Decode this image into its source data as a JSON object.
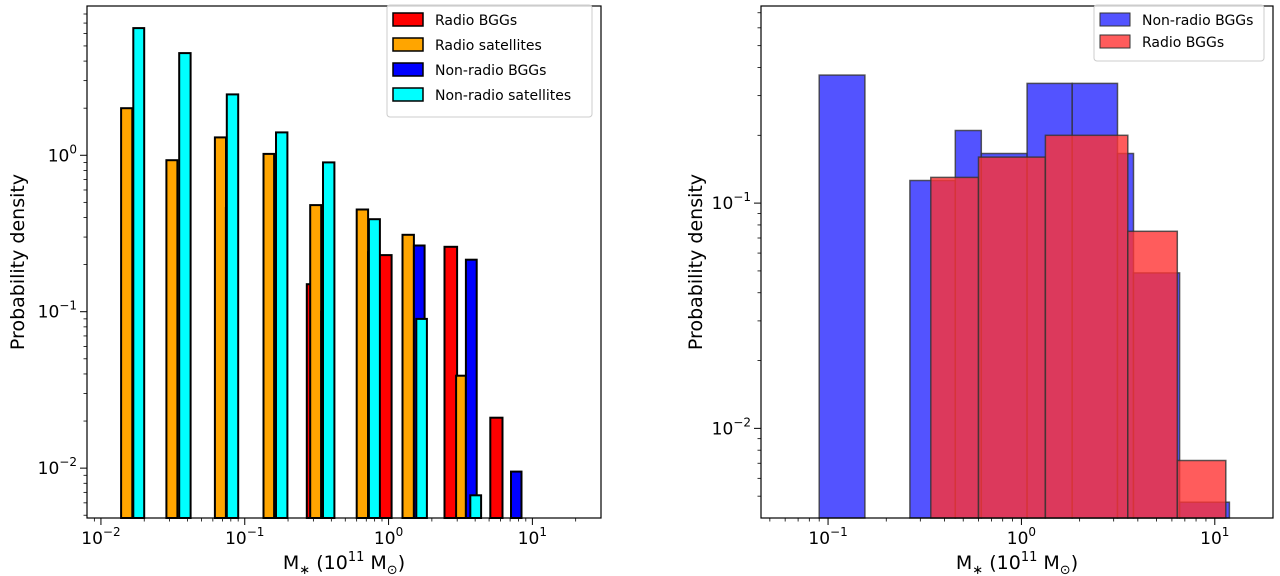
{
  "chart_data": [
    {
      "type": "bar",
      "xlabel_main": "M",
      "xlabel_sub": "∗",
      "xlabel_unit_open": " (10",
      "xlabel_unit_exp": "11",
      "xlabel_unit_sym": " M",
      "xlabel_unit_sun": "⊙",
      "xlabel_unit_close": ")",
      "ylabel": "Probability density",
      "xscale": "log",
      "yscale": "log",
      "xlim": [
        0.008,
        30
      ],
      "ylim": [
        0.0048,
        9
      ],
      "xticks": [
        {
          "base": "10",
          "exp": "−2",
          "v": 0.01
        },
        {
          "base": "10",
          "exp": "−1",
          "v": 0.1
        },
        {
          "base": "10",
          "exp": "0",
          "v": 1
        },
        {
          "base": "10",
          "exp": "1",
          "v": 10
        }
      ],
      "yticks": [
        {
          "base": "10",
          "exp": "−2",
          "v": 0.01
        },
        {
          "base": "10",
          "exp": "−1",
          "v": 0.1
        },
        {
          "base": "10",
          "exp": "0",
          "v": 1
        }
      ],
      "legend_position": "top-right",
      "series": [
        {
          "name": "Radio BGGs",
          "color": "#ff0000",
          "bars": [
            [
              0.27,
              0.33,
              0.15
            ],
            [
              0.85,
              1.05,
              0.23
            ],
            [
              2.45,
              3.0,
              0.26
            ],
            [
              5.1,
              6.2,
              0.021
            ]
          ]
        },
        {
          "name": "Radio satellites",
          "color": "#ffa500",
          "bars": [
            [
              0.0138,
              0.0165,
              2.0
            ],
            [
              0.0285,
              0.034,
              0.93
            ],
            [
              0.062,
              0.074,
              1.3
            ],
            [
              0.135,
              0.16,
              1.02
            ],
            [
              0.285,
              0.34,
              0.48
            ],
            [
              0.6,
              0.72,
              0.45
            ],
            [
              1.25,
              1.5,
              0.31
            ],
            [
              2.95,
              3.45,
              0.039
            ]
          ]
        },
        {
          "name": "Non-radio BGGs",
          "color": "#0000ff",
          "bars": [
            [
              0.074,
              0.088,
              0.46
            ],
            [
              0.34,
              0.4,
              0.1
            ],
            [
              0.72,
              0.85,
              0.24
            ],
            [
              1.5,
              1.78,
              0.265
            ],
            [
              3.45,
              4.1,
              0.215
            ],
            [
              7.1,
              8.4,
              0.0095
            ]
          ]
        },
        {
          "name": "Non-radio satellites",
          "color": "#00ffff",
          "bars": [
            [
              0.0168,
              0.02,
              6.5
            ],
            [
              0.035,
              0.042,
              4.5
            ],
            [
              0.075,
              0.09,
              2.45
            ],
            [
              0.165,
              0.198,
              1.4
            ],
            [
              0.35,
              0.42,
              0.9
            ],
            [
              0.73,
              0.87,
              0.39
            ],
            [
              1.56,
              1.85,
              0.09
            ],
            [
              3.7,
              4.4,
              0.0067
            ]
          ]
        }
      ]
    },
    {
      "type": "bar",
      "xlabel_main": "M",
      "xlabel_sub": "∗",
      "xlabel_unit_open": " (10",
      "xlabel_unit_exp": "11",
      "xlabel_unit_sym": " M",
      "xlabel_unit_sun": "⊙",
      "xlabel_unit_close": ")",
      "ylabel": "Probability density",
      "xscale": "log",
      "yscale": "log",
      "xlim": [
        0.045,
        20
      ],
      "ylim": [
        0.004,
        0.75
      ],
      "xticks": [
        {
          "base": "10",
          "exp": "−1",
          "v": 0.1
        },
        {
          "base": "10",
          "exp": "0",
          "v": 1
        },
        {
          "base": "10",
          "exp": "1",
          "v": 10
        }
      ],
      "yticks": [
        {
          "base": "10",
          "exp": "−2",
          "v": 0.01
        },
        {
          "base": "10",
          "exp": "−1",
          "v": 0.1
        }
      ],
      "legend_position": "top-right",
      "series": [
        {
          "name": "Non-radio BGGs",
          "color": "#4040ff",
          "opacity": 0.9,
          "bars": [
            [
              0.09,
              0.155,
              0.37
            ],
            [
              0.265,
              0.455,
              0.126
            ],
            [
              0.455,
              0.62,
              0.21
            ],
            [
              0.62,
              1.07,
              0.166
            ],
            [
              1.07,
              1.83,
              0.34
            ],
            [
              1.83,
              3.14,
              0.34
            ],
            [
              3.14,
              3.8,
              0.166
            ],
            [
              3.8,
              6.58,
              0.049
            ],
            [
              6.58,
              11.9,
              0.0047
            ]
          ]
        },
        {
          "name": "Radio BGGs",
          "color": "#ff3333",
          "opacity": 0.8,
          "bars": [
            [
              0.34,
              0.6,
              0.13
            ],
            [
              0.6,
              1.33,
              0.16
            ],
            [
              1.33,
              3.55,
              0.2
            ],
            [
              3.55,
              6.4,
              0.075
            ],
            [
              6.4,
              11.4,
              0.0072
            ]
          ]
        }
      ]
    }
  ]
}
